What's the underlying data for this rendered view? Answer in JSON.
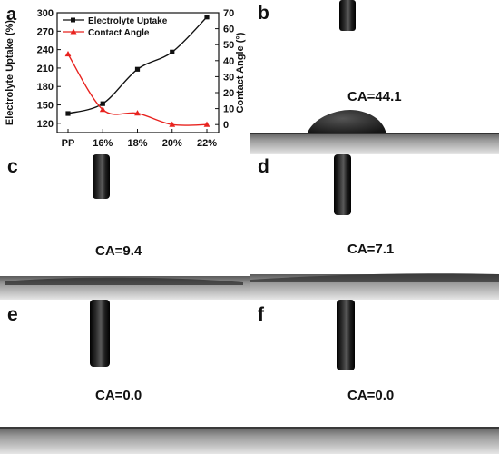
{
  "panels": {
    "a": {
      "letter": "a"
    },
    "b": {
      "letter": "b",
      "ca_text": "CA=44.1"
    },
    "c": {
      "letter": "c",
      "ca_text": "CA=9.4"
    },
    "d": {
      "letter": "d",
      "ca_text": "CA=7.1"
    },
    "e": {
      "letter": "e",
      "ca_text": "CA=0.0"
    },
    "f": {
      "letter": "f",
      "ca_text": "CA=0.0"
    }
  },
  "chart_data": {
    "type": "line",
    "categories": [
      "PP",
      "16%",
      "18%",
      "20%",
      "22%"
    ],
    "ylabel": "Electrolyte Uptake (%)",
    "y2label": "Contact Angle (°)",
    "ylim": [
      105,
      300
    ],
    "y_ticks": [
      120,
      150,
      180,
      210,
      240,
      270,
      300
    ],
    "y2lim": [
      -5,
      70
    ],
    "y2_ticks": [
      0,
      10,
      20,
      30,
      40,
      50,
      60,
      70
    ],
    "grid": false,
    "legend_position": "top-left",
    "series": [
      {
        "name": "Electrolyte Uptake",
        "axis": "left",
        "marker": "square",
        "color": "#111111",
        "values": [
          136,
          152,
          208,
          236,
          293
        ]
      },
      {
        "name": "Contact Angle",
        "axis": "right",
        "marker": "triangle",
        "color": "#e8231f",
        "values": [
          44.1,
          9.4,
          7.1,
          0.0,
          0.0
        ]
      }
    ]
  }
}
